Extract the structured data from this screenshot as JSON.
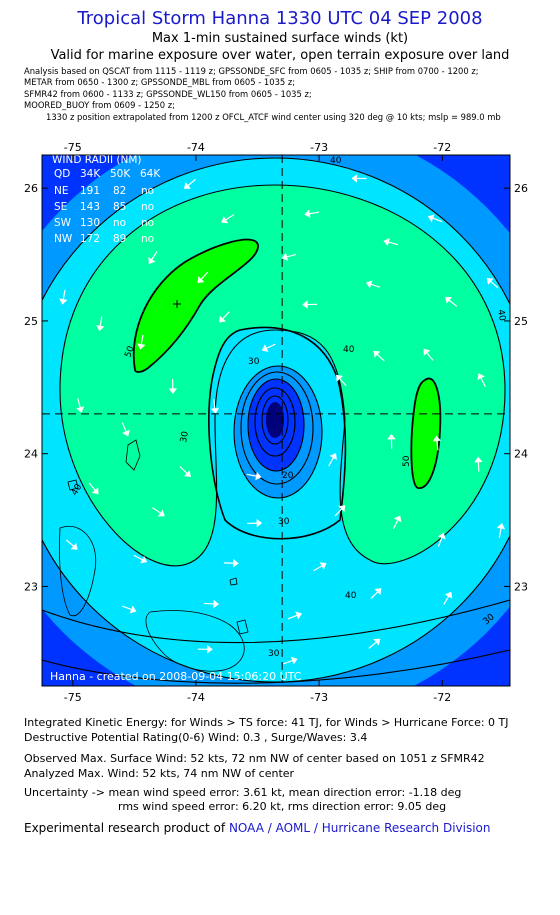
{
  "header": {
    "title": "Tropical Storm Hanna 1330 UTC 04 SEP 2008",
    "subtitle": "Max 1-min sustained surface winds (kt)",
    "validity": "Valid for marine exposure over water, open terrain exposure over land"
  },
  "analysis_lines": [
    "Analysis based on  QSCAT from 1115 - 1119 z;  GPSSONDE_SFC from 0605 - 1035 z;  SHIP from 0700 - 1200 z;",
    "METAR from 0650 - 1300 z;  GPSSONDE_MBL from 0605 - 1035 z;",
    "SFMR42 from 0600 - 1133 z;  GPSSONDE_WL150 from 0605 - 1035 z;",
    "MOORED_BUOY from 0609 - 1250 z;"
  ],
  "extrapolation_note": "1330 z position extrapolated from 1200 z OFCL_ATCF wind center using 320 deg @ 10 kts; mslp = 989.0 mb",
  "map": {
    "lon_ticks": [
      "-75",
      "-74",
      "-73",
      "-72"
    ],
    "lat_ticks": [
      "26",
      "25",
      "24",
      "23"
    ],
    "lon_range": [
      -75.25,
      -71.45
    ],
    "lat_range": [
      22.25,
      26.25
    ],
    "center": {
      "lon": -73.3,
      "lat": 24.3
    },
    "contour_labels": [
      "40",
      "50",
      "30",
      "40",
      "20",
      "30",
      "50",
      "40",
      "40",
      "30",
      "30",
      "30",
      "40"
    ],
    "credit": "Hanna - created on 2008-09-04 15:06:20 UTC",
    "colors": {
      "band_20": "#0033ff",
      "band_30": "#0099ff",
      "band_40": "#00e5ff",
      "band_50": "#00ffa0",
      "band_60": "#00ff00",
      "eye": "#00007a",
      "outside": "#ffffff"
    }
  },
  "wind_radii": {
    "title": "WIND RADII (NM)",
    "columns": [
      "QD",
      "34K",
      "50K",
      "64K"
    ],
    "rows": [
      [
        "NE",
        "191",
        "82",
        "no"
      ],
      [
        "SE",
        "143",
        "85",
        "no"
      ],
      [
        "SW",
        "130",
        "no",
        "no"
      ],
      [
        "NW",
        "172",
        "89",
        "no"
      ]
    ]
  },
  "footer": {
    "ike": "Integrated Kinetic Energy:  for Winds > TS force: 41 TJ,  for Winds > Hurricane Force: 0 TJ",
    "dpr": "Destructive Potential Rating(0-6)   Wind: 0.3 , Surge/Waves: 3.4",
    "observed": "Observed Max. Surface Wind: 52 kts, 72 nm NW of center based on 1051 z SFMR42",
    "analyzed": "Analyzed Max. Wind: 52 kts, 74 nm NW of center",
    "uncertainty_1": "Uncertainty -> mean wind speed error: 3.61 kt,   mean direction error:  -1.18 deg",
    "uncertainty_2": "rms wind speed error: 6.20 kt,   rms direction error: 9.05 deg",
    "product_prefix": "Experimental research product of",
    "product_org": "NOAA / AOML / Hurricane Research Division"
  }
}
